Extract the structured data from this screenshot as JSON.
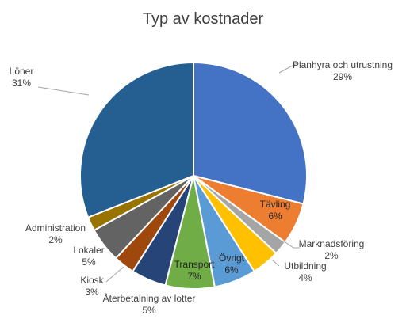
{
  "chart_data": {
    "type": "pie",
    "title": "Typ av kostnader",
    "start_angle_deg": 0,
    "direction": "clockwise",
    "slices": [
      {
        "name": "Planhyra och utrustning",
        "value": 29,
        "pct_label": "29%",
        "color": "#4472C4",
        "label_pos": "outside"
      },
      {
        "name": "Tävling",
        "value": 6,
        "pct_label": "6%",
        "color": "#ED7D31",
        "label_pos": "inside"
      },
      {
        "name": "Marknadsföring",
        "value": 2,
        "pct_label": "2%",
        "color": "#A5A5A5",
        "label_pos": "outside"
      },
      {
        "name": "Utbildning",
        "value": 4,
        "pct_label": "4%",
        "color": "#FFC000",
        "label_pos": "outside"
      },
      {
        "name": "Övrigt",
        "value": 6,
        "pct_label": "6%",
        "color": "#5B9BD5",
        "label_pos": "inside"
      },
      {
        "name": "Transport",
        "value": 7,
        "pct_label": "7%",
        "color": "#70AD47",
        "label_pos": "inside"
      },
      {
        "name": "Återbetalning av lotter",
        "value": 5,
        "pct_label": "5%",
        "color": "#264478",
        "label_pos": "outside"
      },
      {
        "name": "Kiosk",
        "value": 3,
        "pct_label": "3%",
        "color": "#9E480E",
        "label_pos": "outside"
      },
      {
        "name": "Lokaler",
        "value": 5,
        "pct_label": "5%",
        "color": "#636363",
        "label_pos": "outside"
      },
      {
        "name": "Administration",
        "value": 2,
        "pct_label": "2%",
        "color": "#997300",
        "label_pos": "outside"
      },
      {
        "name": "Löner",
        "value": 31,
        "pct_label": "31%",
        "color": "#255E91",
        "label_pos": "outside"
      }
    ]
  }
}
